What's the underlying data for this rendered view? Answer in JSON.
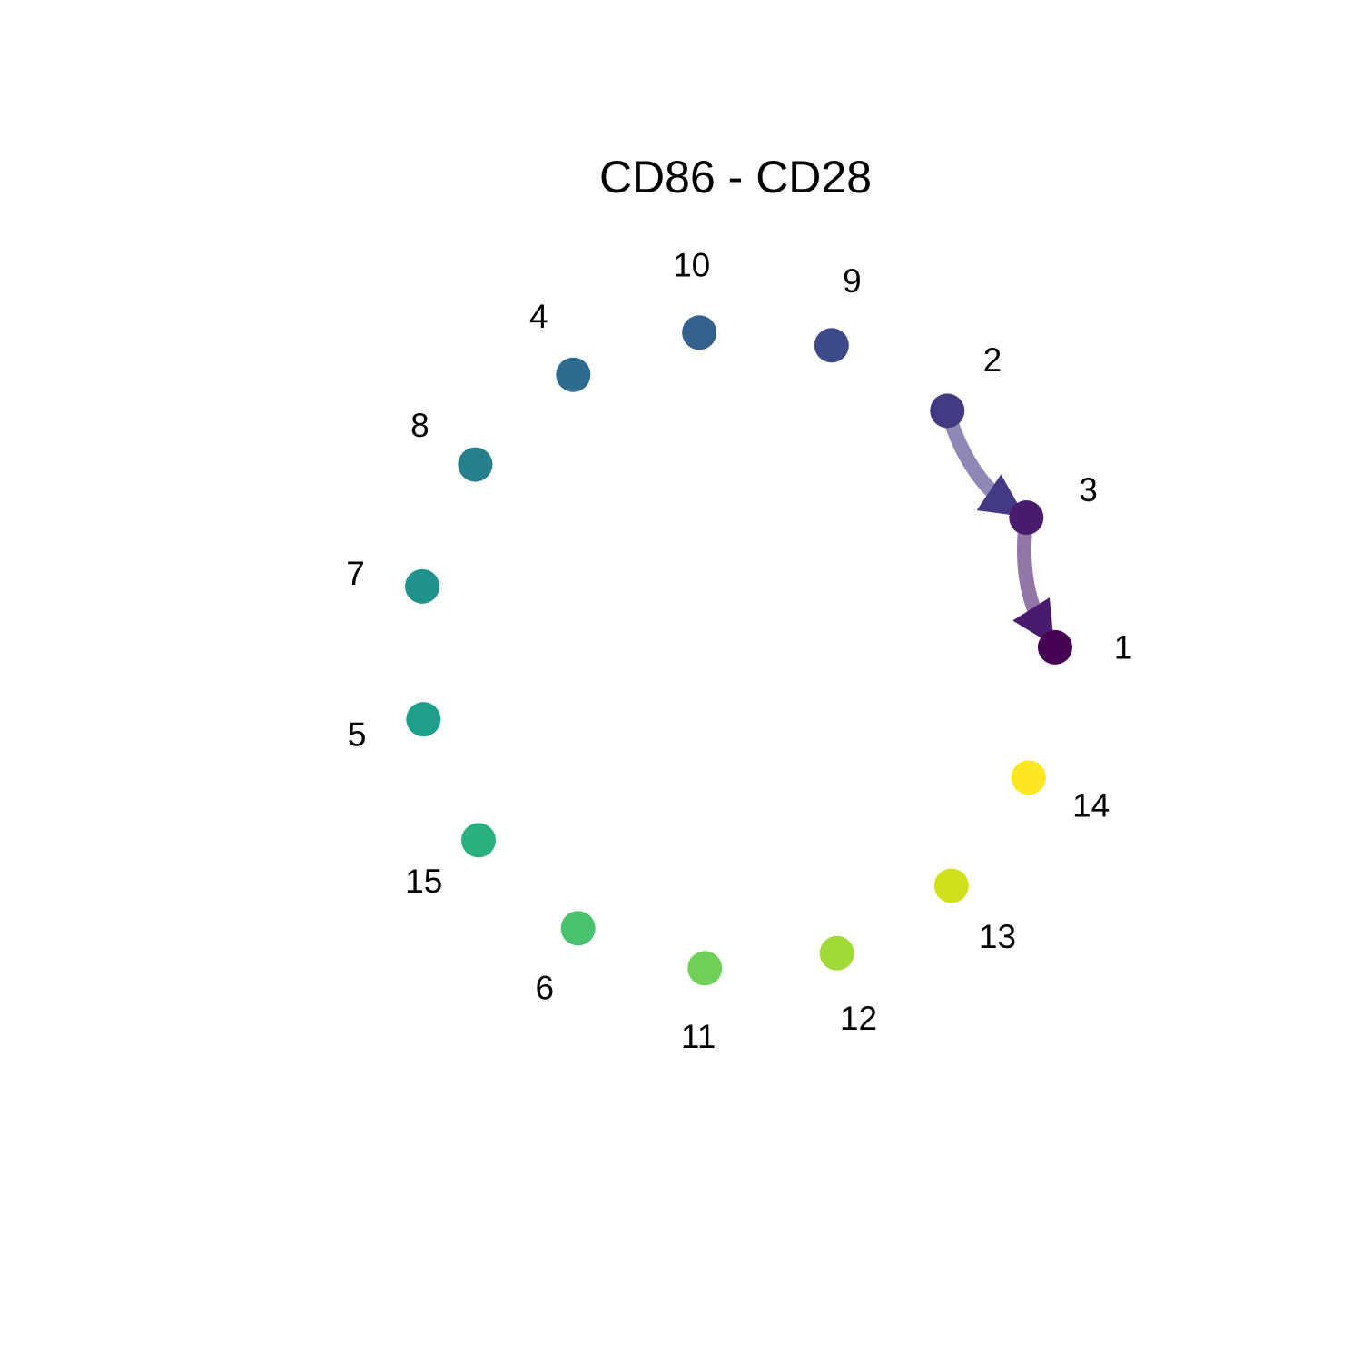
{
  "diagram": {
    "title": "CD86 - CD28",
    "type": "circle-network",
    "node_order_clockwise": [
      "1",
      "14",
      "13",
      "12",
      "11",
      "6",
      "15",
      "5",
      "7",
      "8",
      "4",
      "10",
      "9",
      "2",
      "3"
    ],
    "nodes": [
      {
        "id": "1",
        "label": "1",
        "color": "#440154"
      },
      {
        "id": "2",
        "label": "2",
        "color": "#443983"
      },
      {
        "id": "3",
        "label": "3",
        "color": "#481b6d"
      },
      {
        "id": "4",
        "label": "4",
        "color": "#2f6b8e"
      },
      {
        "id": "5",
        "label": "5",
        "color": "#1f9e89"
      },
      {
        "id": "6",
        "label": "6",
        "color": "#4ac16d"
      },
      {
        "id": "7",
        "label": "7",
        "color": "#21918c"
      },
      {
        "id": "8",
        "label": "8",
        "color": "#277f8e"
      },
      {
        "id": "9",
        "label": "9",
        "color": "#3e4989"
      },
      {
        "id": "10",
        "label": "10",
        "color": "#355f8d"
      },
      {
        "id": "11",
        "label": "11",
        "color": "#71cf57"
      },
      {
        "id": "12",
        "label": "12",
        "color": "#a0da39"
      },
      {
        "id": "13",
        "label": "13",
        "color": "#d0e11c"
      },
      {
        "id": "14",
        "label": "14",
        "color": "#fde725"
      },
      {
        "id": "15",
        "label": "15",
        "color": "#2ab07f"
      }
    ],
    "edges": [
      {
        "source": "2",
        "target": "3",
        "color": "#443983",
        "directed": true
      },
      {
        "source": "3",
        "target": "1",
        "color": "#481b6d",
        "directed": true
      }
    ]
  }
}
